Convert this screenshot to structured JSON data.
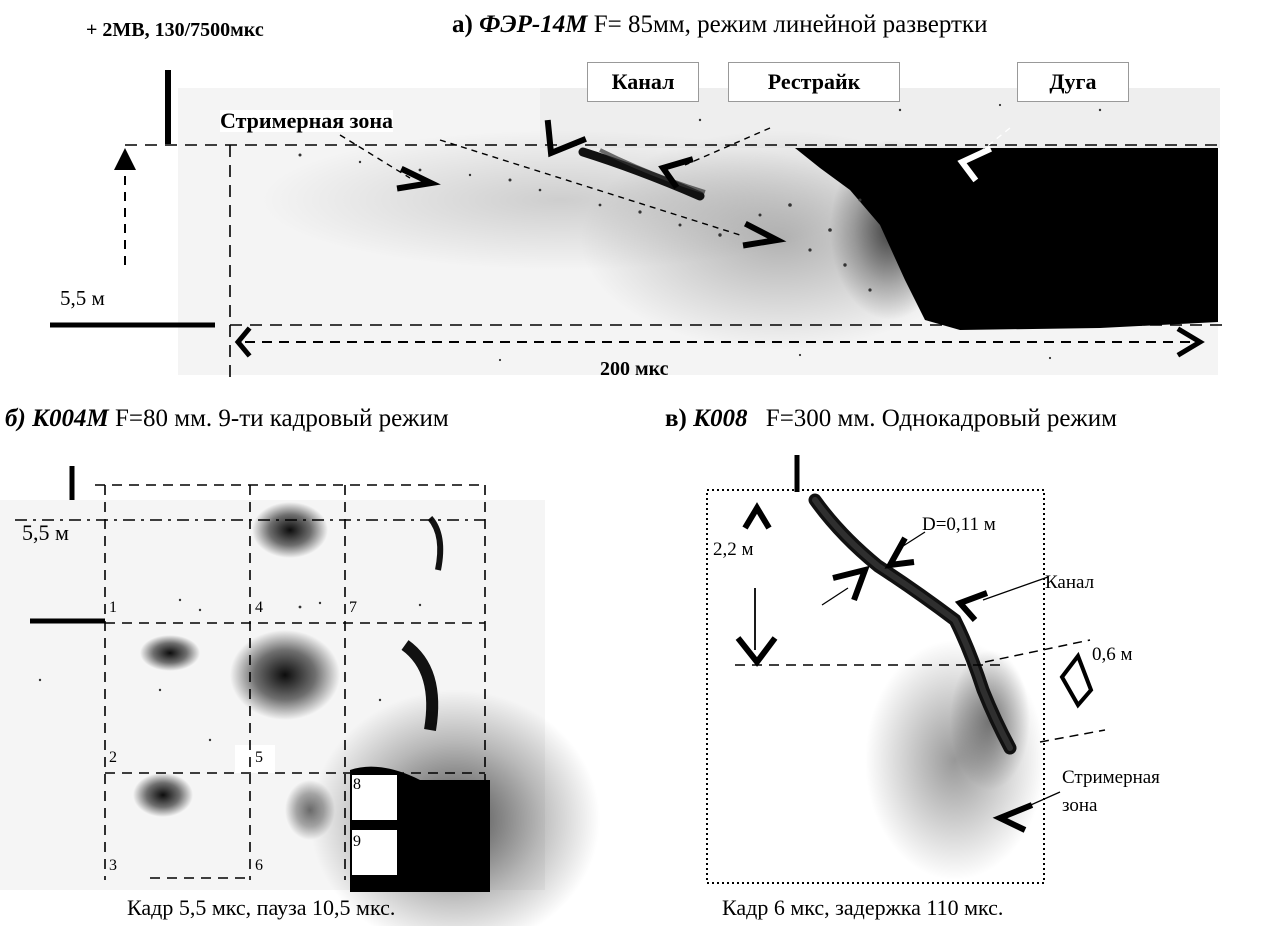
{
  "panel_a": {
    "voltage": "+ 2МВ, 130/7500мкс",
    "title_prefix": "а)",
    "title_device": "ФЭР-14М",
    "title_rest": "F= 85мм,  режим линейной развертки",
    "labels": {
      "channel": "Канал",
      "restrike": "Рестрайк",
      "arc": "Дуга",
      "streamer_zone": "Стримерная  зона"
    },
    "height": "5,5 м",
    "time": "200 мкс"
  },
  "panel_b": {
    "title_prefix": "б)",
    "title_device": "К004М",
    "title_rest": "F=80 мм.  9-ти кадровый  режим",
    "height": "5,5 м",
    "frame_numbers": [
      "1",
      "2",
      "3",
      "4",
      "5",
      "6",
      "7",
      "8",
      "9"
    ],
    "caption": "Кадр 5,5 мкс, пауза 10,5 мкс."
  },
  "panel_c": {
    "title_prefix": "в)",
    "title_device": "К008",
    "title_rest": "F=300 мм. Однокадровый  режим",
    "height": "2,2 м",
    "diameter": "D=0,11 м",
    "channel": "Канал",
    "width": "0,6 м",
    "streamer_line1": "Стримерная",
    "streamer_line2": "зона",
    "caption": "Кадр 6 мкс, задержка 110 мкс."
  }
}
